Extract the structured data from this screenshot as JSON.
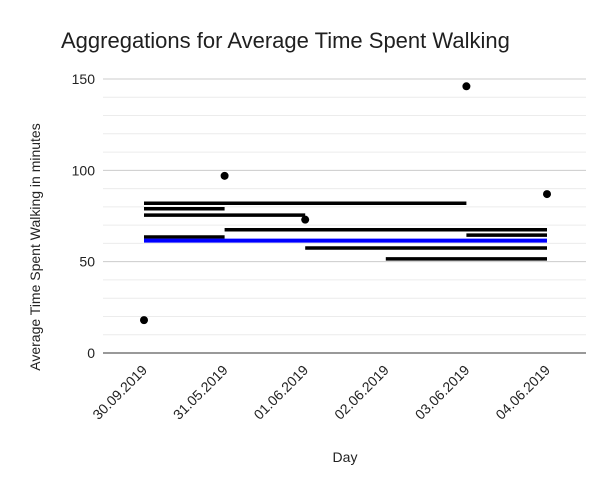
{
  "chart_data": {
    "type": "scatter",
    "title": "Aggregations for Average Time Spent Walking",
    "xlabel": "Day",
    "ylabel": "Average Time Spent Walking in minutes",
    "categories": [
      "30.09.2019",
      "31.05.2019",
      "01.06.2019",
      "02.06.2019",
      "03.06.2019",
      "04.06.2019"
    ],
    "ylim": [
      0,
      150
    ],
    "yticks": [
      0,
      50,
      100,
      150
    ],
    "grid": true,
    "legend": "none",
    "points": {
      "name": "",
      "x": [
        "30.09.2019",
        "31.05.2019",
        "01.06.2019",
        "03.06.2019",
        "04.06.2019"
      ],
      "y": [
        18,
        97,
        73,
        146,
        87
      ],
      "color": "#000000"
    },
    "aggregation_lines": [
      {
        "x_start": "30.09.2019",
        "x_end": "03.06.2019",
        "y": 82,
        "color": "#000000"
      },
      {
        "x_start": "30.09.2019",
        "x_end": "31.05.2019",
        "y": 79,
        "color": "#000000"
      },
      {
        "x_start": "30.09.2019",
        "x_end": "01.06.2019",
        "y": 75.5,
        "color": "#000000"
      },
      {
        "x_start": "31.05.2019",
        "x_end": "04.06.2019",
        "y": 67.5,
        "color": "#000000"
      },
      {
        "x_start": "03.06.2019",
        "x_end": "04.06.2019",
        "y": 64.5,
        "color": "#000000"
      },
      {
        "x_start": "30.09.2019",
        "x_end": "31.05.2019",
        "y": 63.5,
        "color": "#000000"
      },
      {
        "x_start": "30.09.2019",
        "x_end": "04.06.2019",
        "y": 61.5,
        "color": "#0000ff"
      },
      {
        "x_start": "01.06.2019",
        "x_end": "04.06.2019",
        "y": 57.5,
        "color": "#000000"
      },
      {
        "x_start": "02.06.2019",
        "x_end": "04.06.2019",
        "y": 51.5,
        "color": "#000000"
      }
    ]
  }
}
